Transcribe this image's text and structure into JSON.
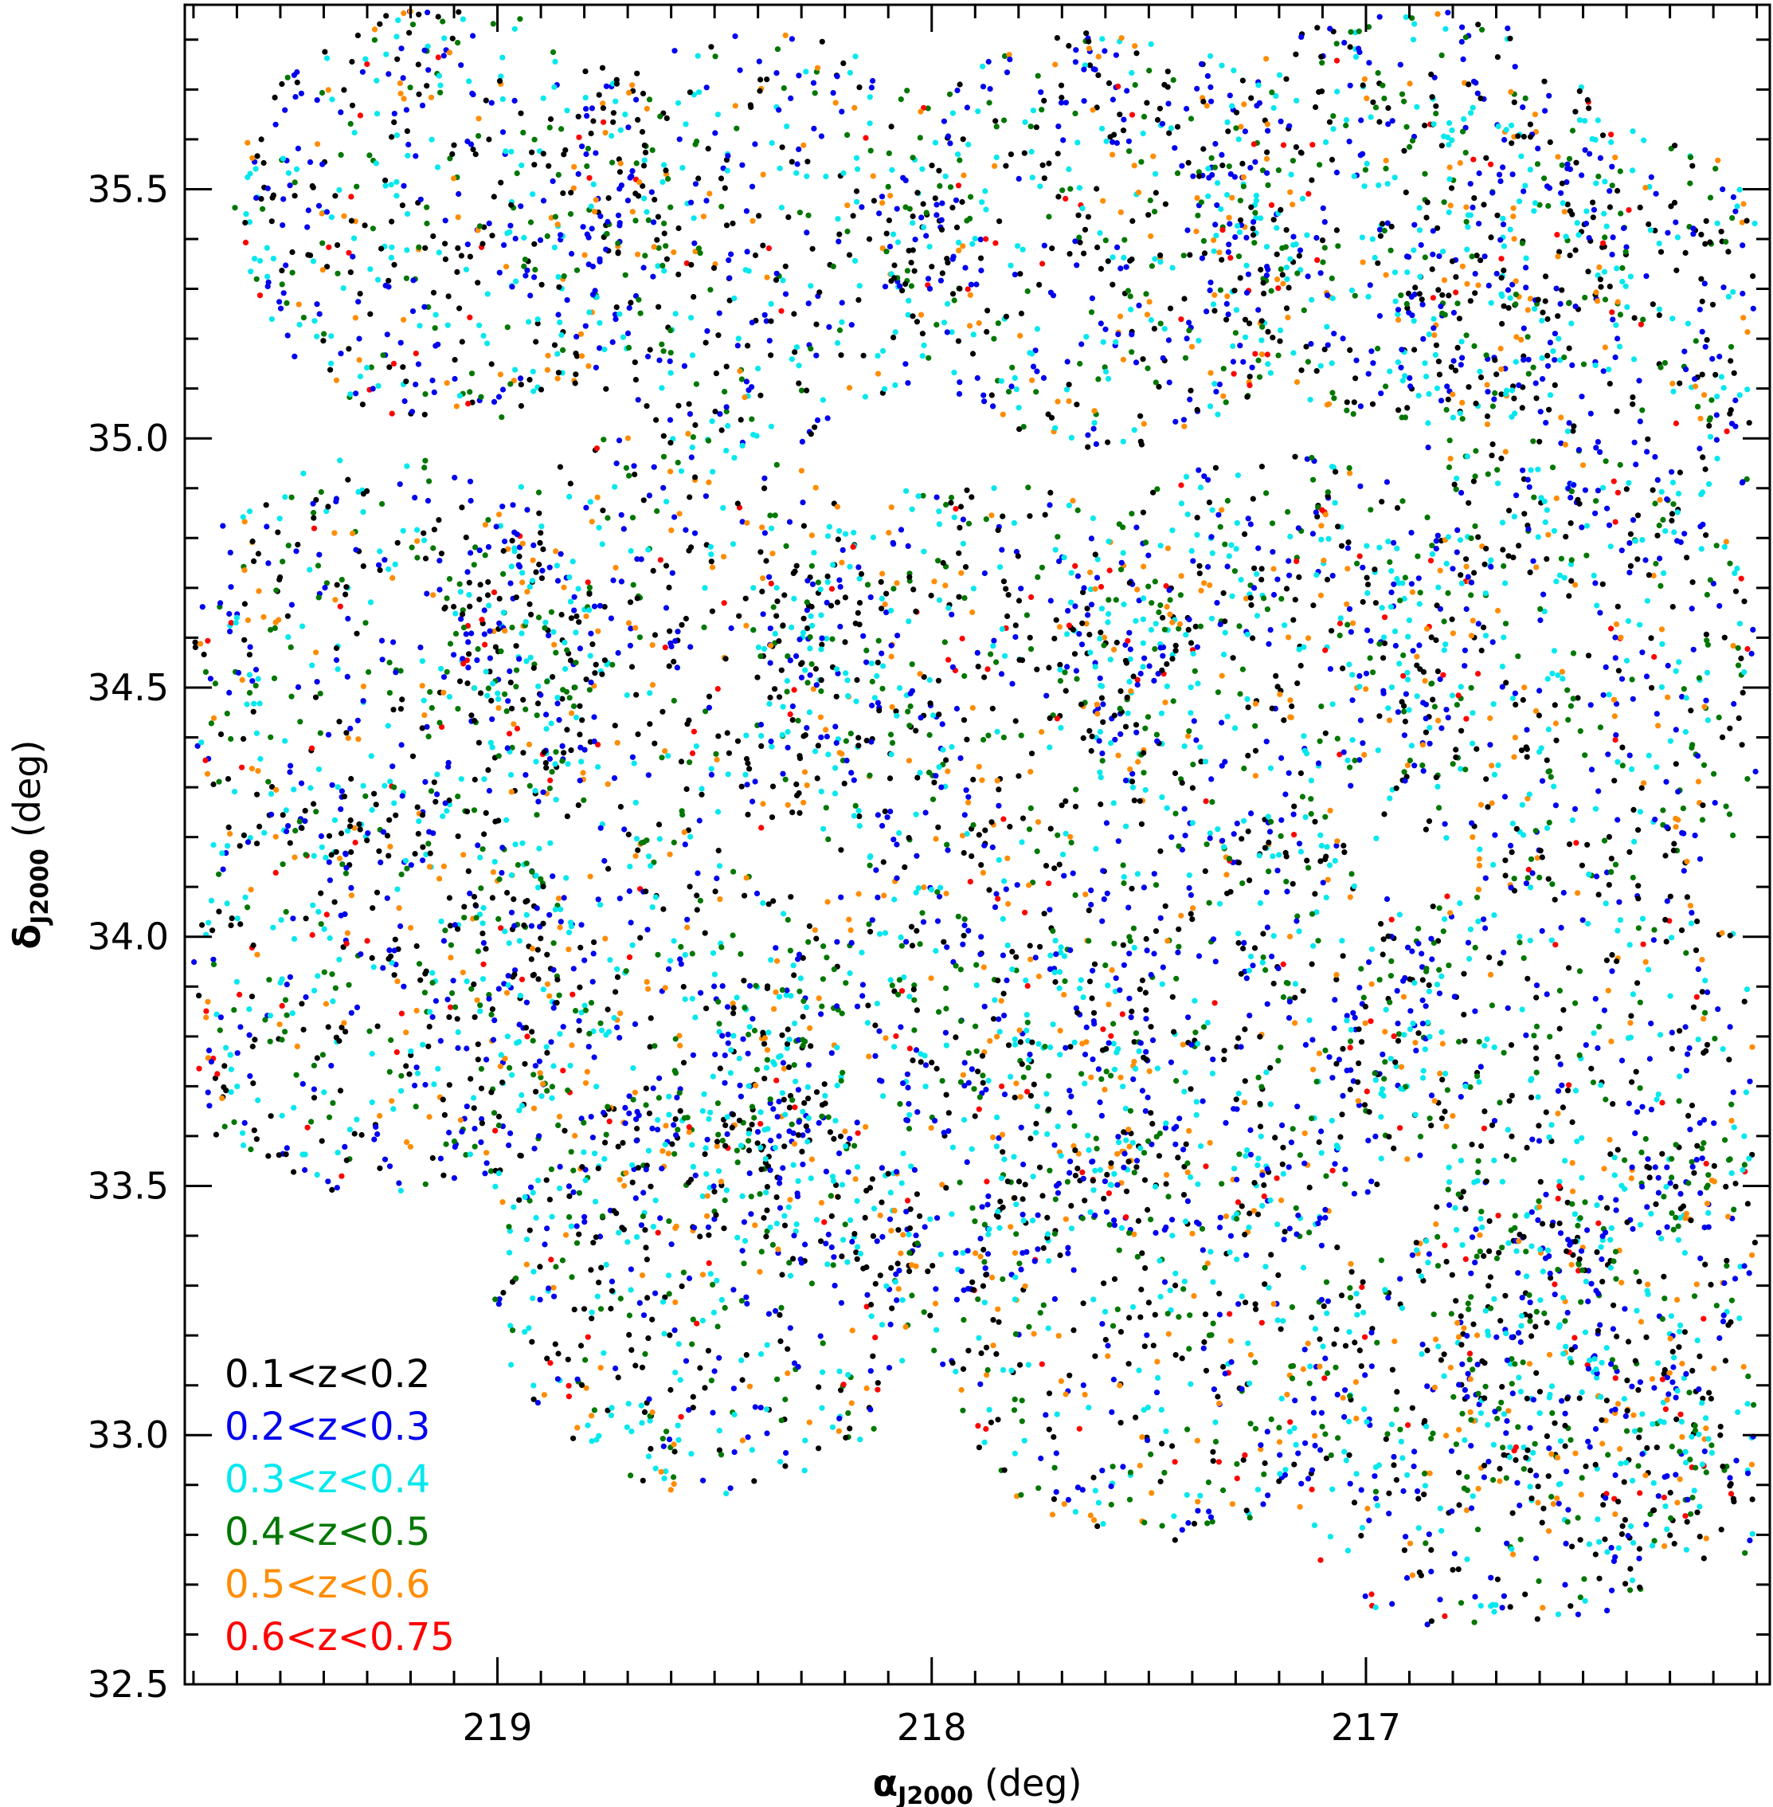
{
  "chart_data": {
    "type": "scatter",
    "title": "",
    "xlabel": {
      "symbol": "α",
      "sub": "J2000",
      "unit": "(deg)"
    },
    "ylabel": {
      "symbol": "δ",
      "sub": "J2000",
      "unit": "(deg)"
    },
    "xlim": [
      219.72,
      216.07
    ],
    "ylim": [
      32.5,
      35.87
    ],
    "xticks": [
      {
        "value": 219,
        "label": "219"
      },
      {
        "value": 218,
        "label": "218"
      },
      {
        "value": 217,
        "label": "217"
      }
    ],
    "yticks": [
      {
        "value": 32.5,
        "label": "32.5"
      },
      {
        "value": 33.0,
        "label": "33.0"
      },
      {
        "value": 33.5,
        "label": "33.5"
      },
      {
        "value": 34.0,
        "label": "34.0"
      },
      {
        "value": 34.5,
        "label": "34.5"
      },
      {
        "value": 35.0,
        "label": "35.0"
      },
      {
        "value": 35.5,
        "label": "35.5"
      }
    ],
    "grid": false,
    "legend_position": "bottom-left",
    "footprint_note": "points are spread over a mosaic of overlapping circular fields",
    "field_centers": [
      {
        "ra": 219.1,
        "dec": 35.45
      },
      {
        "ra": 218.4,
        "dec": 35.4
      },
      {
        "ra": 217.6,
        "dec": 35.4
      },
      {
        "ra": 216.9,
        "dec": 35.45
      },
      {
        "ra": 216.45,
        "dec": 35.2
      },
      {
        "ra": 219.25,
        "dec": 34.55
      },
      {
        "ra": 218.6,
        "dec": 34.6
      },
      {
        "ra": 217.9,
        "dec": 34.5
      },
      {
        "ra": 217.2,
        "dec": 34.55
      },
      {
        "ra": 216.5,
        "dec": 34.5
      },
      {
        "ra": 219.3,
        "dec": 33.9
      },
      {
        "ra": 218.7,
        "dec": 33.8
      },
      {
        "ra": 218.0,
        "dec": 33.7
      },
      {
        "ra": 217.3,
        "dec": 33.8
      },
      {
        "ra": 216.55,
        "dec": 33.75
      },
      {
        "ra": 218.5,
        "dec": 33.3
      },
      {
        "ra": 217.5,
        "dec": 33.2
      },
      {
        "ra": 216.7,
        "dec": 33.0
      },
      {
        "ra": 216.3,
        "dec": 33.15
      }
    ],
    "field_radius_deg": 0.42,
    "series": [
      {
        "name": "0.1<z<0.2",
        "color": "#000000",
        "n_points": 2300
      },
      {
        "name": "0.2<z<0.3",
        "color": "#0000ee",
        "n_points": 2200
      },
      {
        "name": "0.3<z<0.4",
        "color": "#00e8ee",
        "n_points": 2000
      },
      {
        "name": "0.4<z<0.5",
        "color": "#007700",
        "n_points": 1500
      },
      {
        "name": "0.5<z<0.6",
        "color": "#ff8c00",
        "n_points": 900
      },
      {
        "name": "0.6<z<0.75",
        "color": "#ff0000",
        "n_points": 300
      }
    ]
  }
}
